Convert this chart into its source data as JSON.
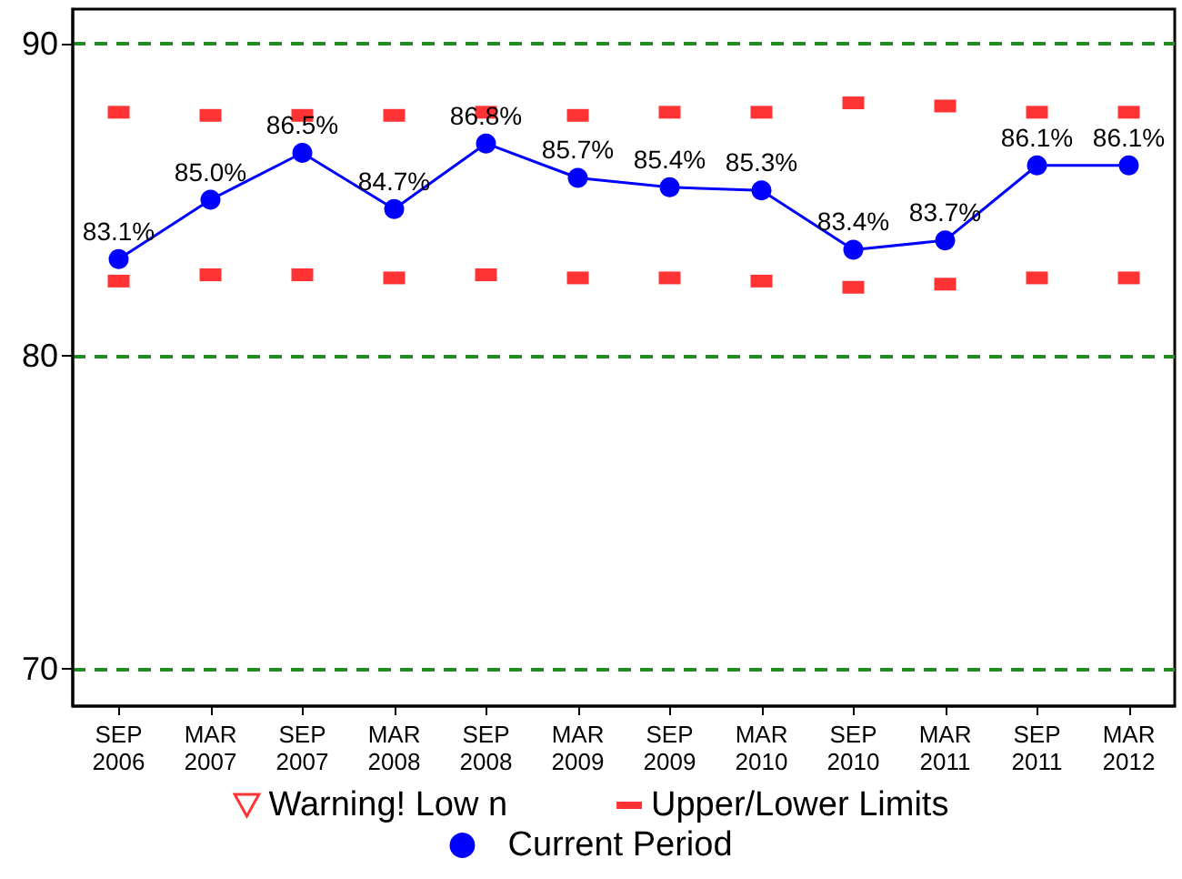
{
  "chart_data": {
    "type": "line",
    "categories": [
      "SEP\n2006",
      "MAR\n2007",
      "SEP\n2007",
      "MAR\n2008",
      "SEP\n2008",
      "MAR\n2009",
      "SEP\n2009",
      "MAR\n2010",
      "SEP\n2010",
      "MAR\n2011",
      "SEP\n2011",
      "MAR\n2012"
    ],
    "series": [
      {
        "name": "Warning! Low n",
        "type": "scatter",
        "marker": "triangle",
        "color": "#ff0000",
        "values": [
          null,
          null,
          null,
          null,
          null,
          null,
          null,
          null,
          null,
          null,
          null,
          null
        ]
      },
      {
        "name": "Upper/Lower Limits",
        "type": "scatter",
        "marker": "square",
        "color": "#ff0000",
        "values": [
          87.8,
          87.7,
          87.7,
          87.7,
          87.8,
          87.7,
          87.8,
          87.8,
          88.1,
          88.0,
          87.8,
          87.8
        ]
      },
      {
        "type": "scatter",
        "marker": "square",
        "color": "#ff0000",
        "values": [
          82.4,
          82.6,
          82.6,
          82.5,
          82.6,
          82.5,
          82.5,
          82.4,
          82.2,
          82.3,
          82.5,
          82.5
        ]
      },
      {
        "name": "Current Period",
        "marker": "circle",
        "color": "#0000ff",
        "values": [
          83.1,
          85.0,
          86.5,
          84.7,
          86.8,
          85.7,
          85.4,
          85.3,
          83.4,
          83.7,
          86.1,
          86.1
        ],
        "value_labels": [
          "83.1%",
          "85.0%",
          "86.5%",
          "84.7%",
          "86.8%",
          "85.7%",
          "85.4%",
          "85.3%",
          "83.4%",
          "83.7%",
          "86.1%",
          "86.1%"
        ]
      }
    ],
    "ylim": [
      68.8,
      91.1
    ],
    "yticks": [
      70,
      80,
      90
    ],
    "grid": "y",
    "legend": "bottom"
  }
}
